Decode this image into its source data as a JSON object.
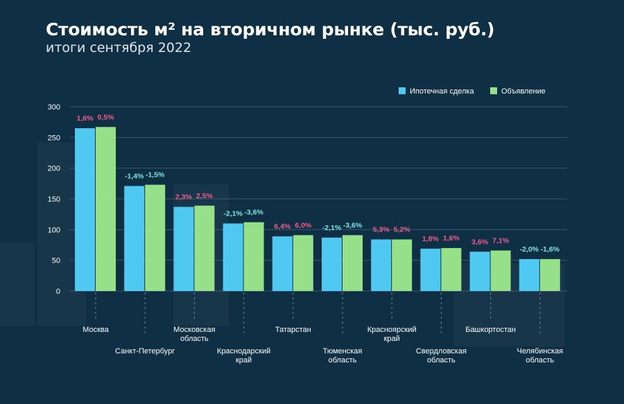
{
  "title": "Стоимость м² на вторичном рынке (тыс. руб.)",
  "subtitle": "итоги сентября 2022",
  "colors": {
    "background": "#0f2f44",
    "series_mortgage": "#4fc8f2",
    "series_listing": "#97e08a",
    "positive_label": "#f25c8d",
    "negative_label": "#7be7e0",
    "grid": "#3d5a6e",
    "text": "#ffffff"
  },
  "chart_data": {
    "type": "bar",
    "ylim": [
      0,
      300
    ],
    "yticks": [
      0,
      50,
      100,
      150,
      200,
      250,
      300
    ],
    "grid": true,
    "legend_position": "top-right",
    "categories": [
      [
        "Москва"
      ],
      [
        "Санкт-Петербург"
      ],
      [
        "Московская",
        "область"
      ],
      [
        "Краснодарский",
        "край"
      ],
      [
        "Татарстан"
      ],
      [
        "Тюменская",
        "область"
      ],
      [
        "Красноярский",
        "край"
      ],
      [
        "Свердловская",
        "область"
      ],
      [
        "Башкортостан"
      ],
      [
        "Челябинская",
        "область"
      ]
    ],
    "series": [
      {
        "name": "Ипотечная сделка",
        "color": "#4fc8f2",
        "values": [
          265,
          171,
          137,
          110,
          89,
          87,
          84,
          69,
          64,
          52
        ],
        "labels": [
          "1,6%",
          "-1,4%",
          "2,3%",
          "-2,1%",
          "6,4%",
          "-2,1%",
          "5,3%",
          "1,8%",
          "3,6%",
          "-2,0%"
        ]
      },
      {
        "name": "Объявление",
        "color": "#97e08a",
        "values": [
          267,
          173,
          139,
          112,
          91,
          91,
          84,
          70,
          66,
          52
        ],
        "labels": [
          "0,5%",
          "-1,5%",
          "2,5%",
          "-3,6%",
          "6,0%",
          "-3,6%",
          "5,2%",
          "1,6%",
          "7,1%",
          "-1,6%"
        ]
      }
    ]
  }
}
